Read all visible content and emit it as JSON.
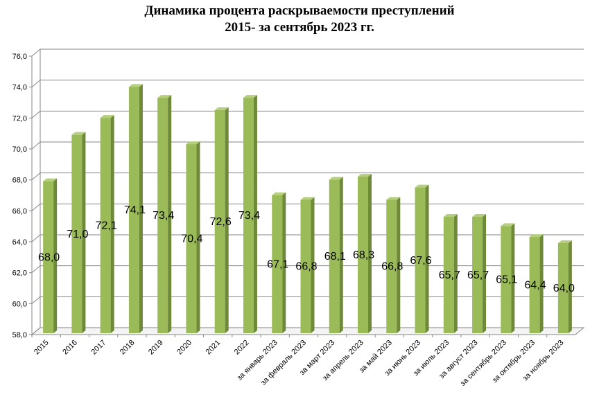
{
  "chart_data": {
    "type": "bar",
    "title": "Динамика процента раскрываемости преступлений",
    "subtitle": "2015- за сентябрь 2023 гг.",
    "xlabel": "",
    "ylabel": "",
    "ylim": [
      58,
      76
    ],
    "yticks": [
      "58,0",
      "60,0",
      "62,0",
      "64,0",
      "66,0",
      "68,0",
      "70,0",
      "72,0",
      "74,0",
      "76,0"
    ],
    "grid": true,
    "legend": "none",
    "categories": [
      "2015",
      "2016",
      "2017",
      "2018",
      "2019",
      "2020",
      "2021",
      "2022",
      "за январь 2023",
      "за февраль 2023",
      "за март 2023",
      "за апрель 2023",
      "за май 2023",
      "за июнь 2023",
      "за июль 2023",
      "за август 2023",
      "за сентябрь 2023",
      "за октябрь 2023",
      "за ноябрь 2023"
    ],
    "values": [
      68.0,
      71.0,
      72.1,
      74.1,
      73.4,
      70.4,
      72.6,
      73.4,
      67.1,
      66.8,
      68.1,
      68.3,
      66.8,
      67.6,
      65.7,
      65.7,
      65.1,
      64.4,
      64.0
    ],
    "data_labels": [
      "68,0",
      "71,0",
      "72,1",
      "74,1",
      "73,4",
      "70,4",
      "72,6",
      "73,4",
      "67,1",
      "66,8",
      "68,1",
      "68,3",
      "66,8",
      "67,6",
      "65,7",
      "65,7",
      "65,1",
      "64,4",
      "64,0"
    ],
    "colors": {
      "bar_front": "#9bbb59",
      "bar_side": "#6e8a38",
      "bar_top": "#b5cf7f",
      "grid": "#868686",
      "wall": "#ffffff"
    }
  }
}
